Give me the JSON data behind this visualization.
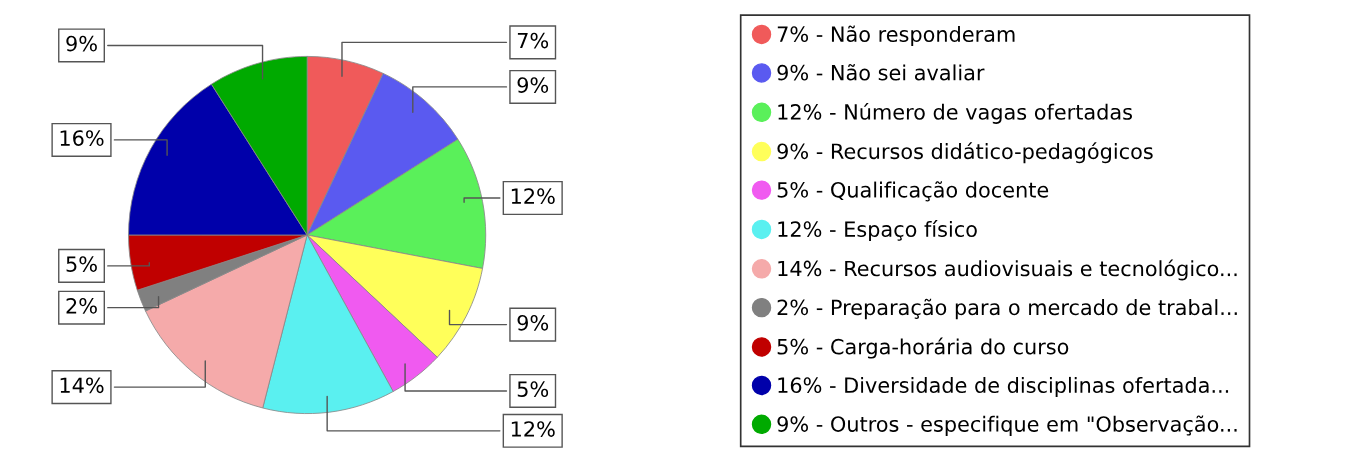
{
  "chart_data": {
    "type": "pie",
    "categories": [
      "Não responderam",
      "Não sei avaliar",
      "Número de vagas ofertadas",
      "Recursos didático-pedagógicos",
      "Qualificação docente",
      "Espaço físico",
      "Recursos audiovisuais e tecnológico...",
      "Preparação para o mercado de trabal...",
      "Carga-horária do curso",
      "Diversidade de disciplinas ofertada...",
      "Outros - especifique em \"Observação..."
    ],
    "values": [
      7,
      9,
      12,
      9,
      5,
      12,
      14,
      2,
      5,
      16,
      9
    ],
    "value_labels": [
      "7%",
      "9%",
      "12%",
      "9%",
      "5%",
      "12%",
      "14%",
      "2%",
      "5%",
      "16%",
      "9%"
    ],
    "colors": [
      "#f05a5a",
      "#5a5af0",
      "#5af05a",
      "#ffff5a",
      "#f05af0",
      "#5af0f0",
      "#f5aaaa",
      "#808080",
      "#c00000",
      "#0000aa",
      "#00aa00"
    ],
    "legend": "right"
  }
}
